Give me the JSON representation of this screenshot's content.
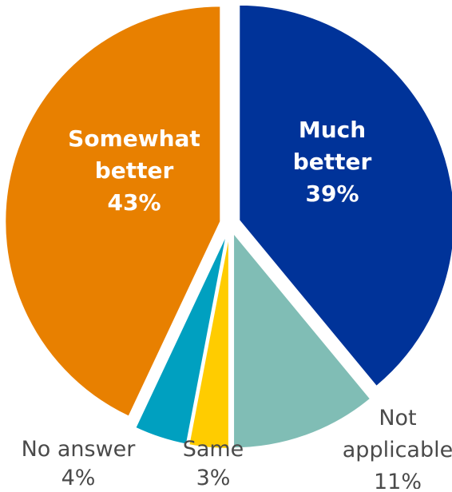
{
  "chart_data": {
    "type": "pie",
    "title": "",
    "slices": [
      {
        "name": "Much better",
        "value": 39,
        "label": "39%",
        "color": "#003399",
        "label_lines": [
          "Much",
          "better",
          "39%"
        ],
        "label_position": "inside"
      },
      {
        "name": "Not applicable",
        "value": 11,
        "label": "11%",
        "color": "#80BDB5",
        "label_lines": [
          "Not",
          "applicable",
          "11%"
        ],
        "label_position": "outside"
      },
      {
        "name": "Same",
        "value": 3,
        "label": "3%",
        "color": "#FFCC00",
        "label_lines": [
          "Same",
          "3%"
        ],
        "label_position": "outside"
      },
      {
        "name": "No answer",
        "value": 4,
        "label": "4%",
        "color": "#00A0C0",
        "label_lines": [
          "No answer",
          "4%"
        ],
        "label_position": "outside"
      },
      {
        "name": "Somewhat better",
        "value": 43,
        "label": "43%",
        "color": "#E88000",
        "label_lines": [
          "Somewhat",
          "better",
          "43%"
        ],
        "label_position": "inside"
      }
    ],
    "start": "12 o'clock",
    "direction": "clockwise",
    "exploded": true,
    "legend": "none"
  }
}
